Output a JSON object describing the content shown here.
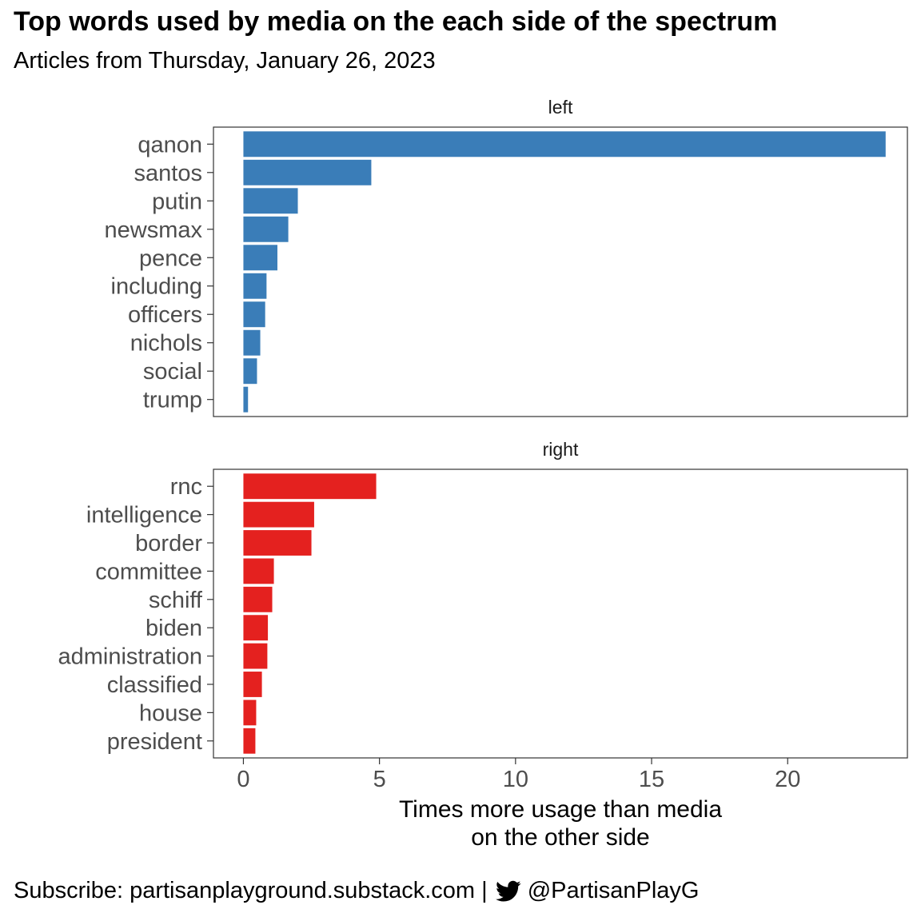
{
  "header": {
    "title": "Top words used by media on the each side of the spectrum",
    "subtitle": "Articles from Thursday, January 26, 2023"
  },
  "footer": {
    "subscribe_text": "Subscribe: partisanplayground.substack.com |",
    "twitter_handle": "@PartisanPlayG",
    "twitter_icon": "twitter-bird-icon"
  },
  "chart_data": {
    "type": "bar",
    "orientation": "horizontal",
    "xlabel": "Times more usage than media\non the other side",
    "xlim": [
      -1.1,
      24.4
    ],
    "xticks": [
      0,
      5,
      10,
      15,
      20
    ],
    "grid": false,
    "facets": [
      {
        "strip_label": "left",
        "color": "#3A7DB8",
        "categories": [
          "qanon",
          "santos",
          "putin",
          "newsmax",
          "pence",
          "including",
          "officers",
          "nichols",
          "social",
          "trump"
        ],
        "values": [
          23.6,
          4.7,
          2.0,
          1.65,
          1.25,
          0.85,
          0.8,
          0.62,
          0.5,
          0.17
        ]
      },
      {
        "strip_label": "right",
        "color": "#E4211F",
        "categories": [
          "rnc",
          "intelligence",
          "border",
          "committee",
          "schiff",
          "biden",
          "administration",
          "classified",
          "house",
          "president"
        ],
        "values": [
          4.88,
          2.6,
          2.5,
          1.12,
          1.06,
          0.9,
          0.88,
          0.68,
          0.47,
          0.44
        ]
      }
    ]
  }
}
